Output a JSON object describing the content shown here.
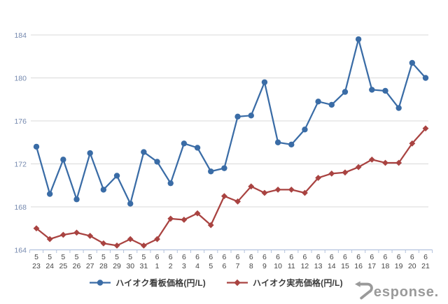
{
  "chart": {
    "legend": [
      {
        "label": "ハイオク看板価格(円/L)",
        "marker": "circle"
      },
      {
        "label": "ハイオク実売価格(円/L)",
        "marker": "diamond"
      }
    ],
    "watermark": "Response.",
    "watermark_rest": "esponse."
  },
  "colors": {
    "series_signboard": "#3a6ca6",
    "series_actual": "#a94341",
    "gridline": "#d9d9d9",
    "axis": "#b3c2dd",
    "y_label": "#7488ae",
    "x_label": "#454545",
    "watermark": "#9a9a9a"
  },
  "chart_data": {
    "type": "line",
    "categories": [
      "5/23",
      "5/24",
      "5/25",
      "5/26",
      "5/27",
      "5/28",
      "5/29",
      "5/30",
      "5/31",
      "6/1",
      "6/2",
      "6/3",
      "6/4",
      "6/5",
      "6/6",
      "6/7",
      "6/8",
      "6/9",
      "6/10",
      "6/11",
      "6/12",
      "6/13",
      "6/14",
      "6/15",
      "6/16",
      "6/17",
      "6/18",
      "6/19",
      "6/20",
      "6/21"
    ],
    "series": [
      {
        "name": "ハイオク看板価格(円/L)",
        "color": "#3a6ca6",
        "marker": "circle",
        "values": [
          173.6,
          169.2,
          172.4,
          168.7,
          173.0,
          169.6,
          170.9,
          168.3,
          173.1,
          172.2,
          170.2,
          173.9,
          173.5,
          171.3,
          171.6,
          176.4,
          176.5,
          179.6,
          174.0,
          173.8,
          175.2,
          177.8,
          177.5,
          178.7,
          183.6,
          178.9,
          178.8,
          177.2,
          181.4,
          180.0
        ]
      },
      {
        "name": "ハイオク実売価格(円/L)",
        "color": "#a94341",
        "marker": "diamond",
        "values": [
          166.0,
          165.0,
          165.4,
          165.6,
          165.3,
          164.6,
          164.4,
          165.0,
          164.4,
          165.0,
          166.9,
          166.8,
          167.4,
          166.3,
          169.0,
          168.5,
          169.9,
          169.3,
          169.6,
          169.6,
          169.3,
          170.7,
          171.1,
          171.2,
          171.7,
          172.4,
          172.1,
          172.1,
          173.9,
          175.3
        ]
      }
    ],
    "title": "",
    "xlabel": "",
    "ylabel": "",
    "ylim": [
      164,
      184
    ],
    "yticks": [
      164,
      168,
      172,
      176,
      180,
      184
    ],
    "grid": true,
    "legend_position": "bottom"
  }
}
